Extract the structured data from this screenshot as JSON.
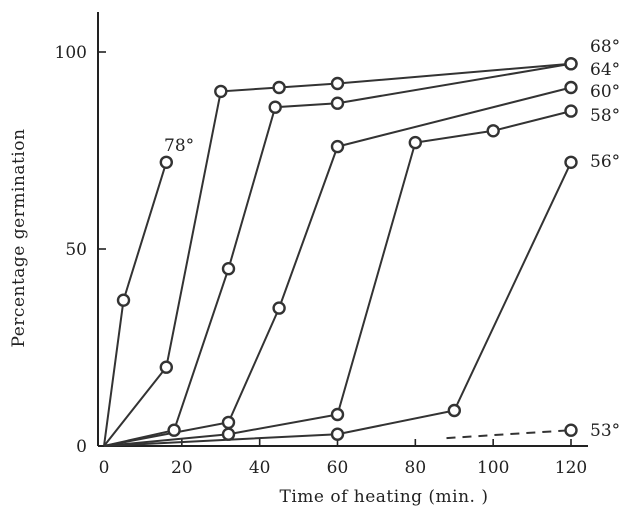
{
  "chart_data": {
    "type": "line",
    "title": "",
    "xlabel": "Time of heating (min. )",
    "ylabel": "Percentage germination",
    "xlim": [
      0,
      120
    ],
    "ylim": [
      0,
      100
    ],
    "xticks": [
      "0",
      "20",
      "40",
      "60",
      "80",
      "100",
      "120"
    ],
    "yticks": [
      "0",
      "50",
      "100"
    ],
    "grid": false,
    "legend": "labels at line ends",
    "series": [
      {
        "name": "78°",
        "points": [
          [
            0,
            0
          ],
          [
            5,
            37
          ],
          [
            16,
            72
          ]
        ],
        "dashed": false
      },
      {
        "name": "68°",
        "points": [
          [
            0,
            0
          ],
          [
            16,
            20
          ],
          [
            30,
            90
          ],
          [
            45,
            91
          ],
          [
            60,
            92
          ],
          [
            120,
            97
          ]
        ],
        "dashed": false
      },
      {
        "name": "64°",
        "points": [
          [
            0,
            0
          ],
          [
            18,
            4
          ],
          [
            32,
            45
          ],
          [
            44,
            86
          ],
          [
            60,
            87
          ],
          [
            120,
            97
          ]
        ],
        "dashed": false
      },
      {
        "name": "60°",
        "points": [
          [
            0,
            0
          ],
          [
            32,
            6
          ],
          [
            45,
            35
          ],
          [
            60,
            76
          ],
          [
            120,
            91
          ]
        ],
        "dashed": false
      },
      {
        "name": "58°",
        "points": [
          [
            0,
            0
          ],
          [
            32,
            3
          ],
          [
            60,
            8
          ],
          [
            80,
            77
          ],
          [
            100,
            80
          ],
          [
            120,
            85
          ]
        ],
        "dashed": false
      },
      {
        "name": "56°",
        "points": [
          [
            0,
            0
          ],
          [
            60,
            3
          ],
          [
            90,
            9
          ],
          [
            120,
            72
          ]
        ],
        "dashed": false
      },
      {
        "name": "53°",
        "points": [
          [
            88,
            2
          ],
          [
            120,
            4
          ]
        ],
        "dashed": true,
        "marker_x": [
          120
        ]
      }
    ]
  }
}
